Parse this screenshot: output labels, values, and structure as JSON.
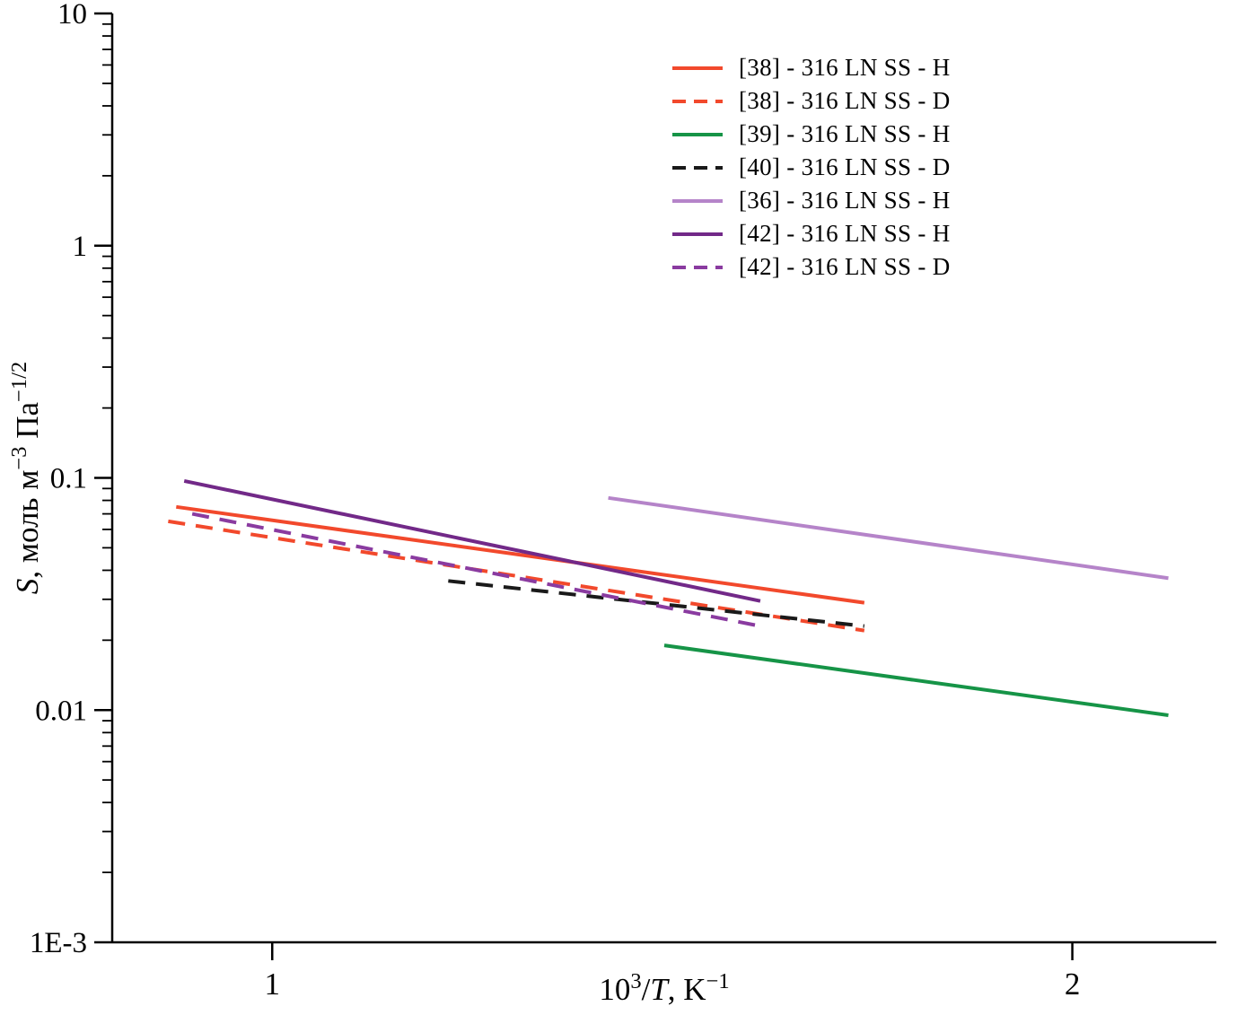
{
  "chart_data": {
    "type": "line",
    "title": "",
    "grid": false,
    "legend_position": "inside-top-center-right",
    "x_scale": "linear",
    "y_scale": "log",
    "x_range": [
      0.8,
      2.18
    ],
    "y_range": [
      0.001,
      10
    ],
    "x_ticks": [
      {
        "label": "1",
        "value": 1
      },
      {
        "label": "2",
        "value": 2
      }
    ],
    "y_ticks": [
      {
        "label": "10",
        "value": 10
      },
      {
        "label": "1",
        "value": 1
      },
      {
        "label": "0.1",
        "value": 0.1
      },
      {
        "label": "0.01",
        "value": 0.01
      },
      {
        "label": "1E-3",
        "value": 0.001
      }
    ],
    "xlabel_parts": [
      {
        "text": "10",
        "style": "normal"
      },
      {
        "text": "3",
        "style": "sup"
      },
      {
        "text": "/",
        "style": "normal"
      },
      {
        "text": "T",
        "style": "italic"
      },
      {
        "text": ", K",
        "style": "normal"
      },
      {
        "text": "−1",
        "style": "sup"
      }
    ],
    "ylabel_parts": [
      {
        "text": "S",
        "style": "italic"
      },
      {
        "text": ", моль м",
        "style": "normal"
      },
      {
        "text": "−3",
        "style": "sup"
      },
      {
        "text": " Па",
        "style": "normal"
      },
      {
        "text": "−1/2",
        "style": "sup"
      }
    ],
    "series": [
      {
        "label": "[38] - 316 LN SS - H",
        "color": "#f2492c",
        "line_style": "solid",
        "x": [
          0.88,
          1.74
        ],
        "y": [
          0.075,
          0.029
        ]
      },
      {
        "label": "[38] - 316 LN SS - D",
        "color": "#f2492c",
        "line_style": "dashed",
        "x": [
          0.87,
          1.74
        ],
        "y": [
          0.065,
          0.022
        ]
      },
      {
        "label": "[39] - 316 LN SS - H",
        "color": "#169447",
        "line_style": "solid",
        "x": [
          1.49,
          2.12
        ],
        "y": [
          0.019,
          0.0095
        ]
      },
      {
        "label": "[40] - 316 LN SS - D",
        "color": "#1a1a1a",
        "line_style": "dashed",
        "x": [
          1.22,
          1.74
        ],
        "y": [
          0.036,
          0.023
        ]
      },
      {
        "label": "[36] - 316 LN SS - H",
        "color": "#b584c9",
        "line_style": "solid",
        "x": [
          1.42,
          2.12
        ],
        "y": [
          0.082,
          0.037
        ]
      },
      {
        "label": "[42] - 316 LN SS - H",
        "color": "#722988",
        "line_style": "solid",
        "x": [
          0.89,
          1.61
        ],
        "y": [
          0.097,
          0.0295
        ]
      },
      {
        "label": "[42] - 316 LN SS - D",
        "color": "#8a3ba0",
        "line_style": "dashed",
        "x": [
          0.9,
          1.61
        ],
        "y": [
          0.07,
          0.023
        ]
      }
    ]
  }
}
